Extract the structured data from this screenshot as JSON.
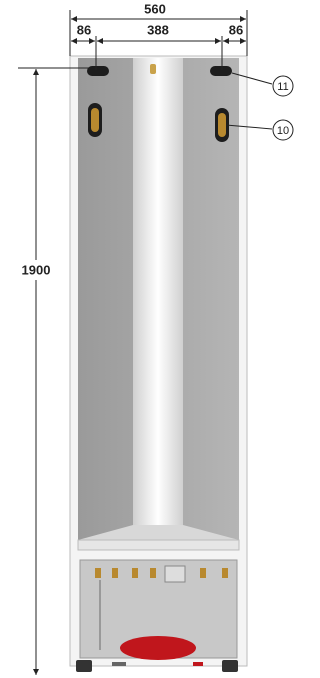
{
  "dimensions": {
    "overall_width": 560,
    "left_offset": 86,
    "center_spacing": 388,
    "right_offset": 86,
    "height": 1900
  },
  "callouts": [
    {
      "label": 11
    },
    {
      "label": 10
    }
  ]
}
